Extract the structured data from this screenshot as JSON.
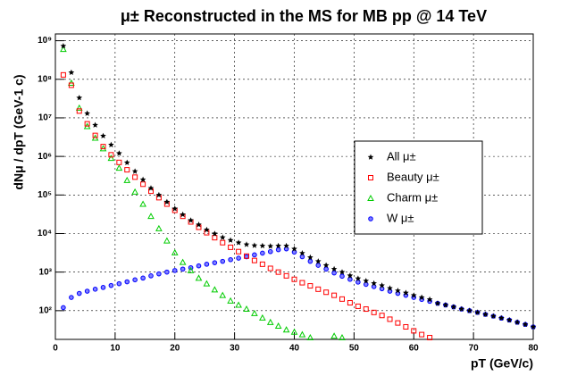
{
  "chart_data": {
    "type": "scatter",
    "title": "μ± Reconstructed in the MS for MB pp @ 14 TeV",
    "x_label": "pT (GeV/c)",
    "y_label": "dNμ / dpT  (GeV-1 c)",
    "xlim": [
      0,
      80
    ],
    "xticks": [
      0,
      10,
      20,
      30,
      40,
      50,
      60,
      70,
      80
    ],
    "ylim": [
      18,
      1500000000
    ],
    "ylog": true,
    "grid": true,
    "yticks": [
      {
        "value": 100,
        "label": "10²"
      },
      {
        "value": 1000,
        "label": "10³"
      },
      {
        "value": 10000,
        "label": "10⁴"
      },
      {
        "value": 100000,
        "label": "10⁵"
      },
      {
        "value": 1000000,
        "label": "10⁶"
      },
      {
        "value": 10000000,
        "label": "10⁷"
      },
      {
        "value": 100000000,
        "label": "10⁸"
      },
      {
        "value": 1000000000,
        "label": "10⁹"
      }
    ],
    "x": [
      1.33,
      2.67,
      4,
      5.33,
      6.67,
      8,
      9.33,
      10.67,
      12,
      13.33,
      14.67,
      16,
      17.33,
      18.67,
      20,
      21.33,
      22.67,
      24,
      25.33,
      26.67,
      28,
      29.33,
      30.67,
      32,
      33.33,
      34.67,
      36,
      37.33,
      38.67,
      40,
      41.33,
      42.67,
      44,
      45.33,
      46.67,
      48,
      49.33,
      50.67,
      52,
      53.33,
      54.67,
      56,
      57.33,
      58.67,
      60,
      61.33,
      62.67,
      64,
      65.33,
      66.67,
      68,
      69.33,
      70.67,
      72,
      73.33,
      74.67,
      76,
      77.33,
      78.67,
      80
    ],
    "series": [
      {
        "name": "All μ±",
        "color": "#000000",
        "marker": "star",
        "values": [
          730000000,
          150000000,
          33000000,
          13000000,
          6500000,
          3400000,
          2000000,
          1200000,
          690000,
          410000,
          250000,
          150000,
          100000,
          66000,
          44000,
          31000,
          22000,
          17000,
          12500,
          9900,
          7900,
          6700,
          5800,
          5200,
          4900,
          4800,
          4700,
          4800,
          4800,
          4000,
          3100,
          2400,
          1900,
          1500,
          1200,
          1000,
          810,
          680,
          590,
          510,
          450,
          380,
          330,
          290,
          250,
          220,
          195,
          155,
          140,
          125,
          110,
          100,
          90,
          80,
          72,
          64,
          57,
          50,
          44,
          38
        ]
      },
      {
        "name": "Beauty μ±",
        "color": "#ff0000",
        "marker": "square",
        "values": [
          130000000,
          70000000,
          15000000,
          7000000,
          3500000,
          1800000,
          1100000,
          700000,
          450000,
          290000,
          190000,
          125000,
          85000,
          58000,
          40000,
          28000,
          20000,
          14500,
          10500,
          7800,
          5800,
          4400,
          3400,
          2600,
          2000,
          1600,
          1250,
          1000,
          800,
          650,
          530,
          440,
          360,
          300,
          250,
          200,
          160,
          130,
          110,
          90,
          75,
          60,
          48,
          38,
          30,
          24,
          20,
          null,
          null,
          null,
          null,
          null,
          null,
          null,
          null,
          null,
          null,
          null,
          null,
          null
        ]
      },
      {
        "name": "Charm μ±",
        "color": "#00cc00",
        "marker": "triangle",
        "values": [
          600000000,
          80000000,
          18000000,
          6000000,
          3000000,
          1600000,
          900000,
          500000,
          240000,
          120000,
          58000,
          28000,
          13500,
          6500,
          3200,
          1800,
          1100,
          700,
          500,
          350,
          250,
          180,
          140,
          110,
          85,
          65,
          50,
          40,
          32,
          28,
          24,
          20,
          null,
          null,
          22,
          20,
          null,
          null,
          null,
          null,
          null,
          null,
          null,
          null,
          null,
          null,
          null,
          null,
          null,
          null,
          null,
          null,
          null,
          null,
          null,
          null,
          null,
          null,
          null,
          null
        ]
      },
      {
        "name": "W μ±",
        "color": "#0000ff",
        "marker": "circle",
        "values": [
          120,
          220,
          280,
          320,
          360,
          400,
          450,
          500,
          560,
          630,
          700,
          800,
          900,
          1000,
          1100,
          1200,
          1300,
          1450,
          1600,
          1750,
          1900,
          2100,
          2300,
          2500,
          2800,
          3100,
          3400,
          3800,
          4000,
          3300,
          2500,
          1900,
          1500,
          1200,
          950,
          780,
          650,
          550,
          480,
          420,
          370,
          320,
          280,
          250,
          220,
          195,
          175,
          155,
          140,
          125,
          110,
          100,
          90,
          80,
          72,
          64,
          57,
          50,
          44,
          38
        ]
      }
    ]
  }
}
